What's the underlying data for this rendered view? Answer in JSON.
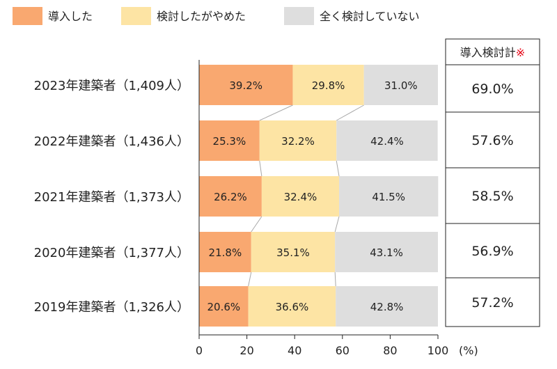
{
  "chart_data": {
    "type": "bar",
    "stacked": true,
    "orientation": "horizontal",
    "unit_label": "(%)",
    "xlim": [
      0,
      100
    ],
    "xticks": [
      0,
      20,
      40,
      60,
      80,
      100
    ],
    "categories": [
      "2023年建築者（1,409人）",
      "2022年建築者（1,436人）",
      "2021年建築者（1,373人）",
      "2020年建築者（1,377人）",
      "2019年建築者（1,326人）"
    ],
    "series": [
      {
        "name": "導入した",
        "color": "#f9a870",
        "values": [
          39.2,
          25.3,
          26.2,
          21.8,
          20.6
        ]
      },
      {
        "name": "検討したがやめた",
        "color": "#fde4a4",
        "values": [
          29.8,
          32.2,
          32.4,
          35.1,
          36.6
        ]
      },
      {
        "name": "全く検討していない",
        "color": "#dedede",
        "values": [
          31.0,
          42.4,
          41.5,
          43.1,
          42.8
        ]
      }
    ],
    "side_table": {
      "header": "導入検討計",
      "header_mark": "※",
      "values": [
        "69.0%",
        "57.6%",
        "58.5%",
        "56.9%",
        "57.2%"
      ]
    }
  }
}
